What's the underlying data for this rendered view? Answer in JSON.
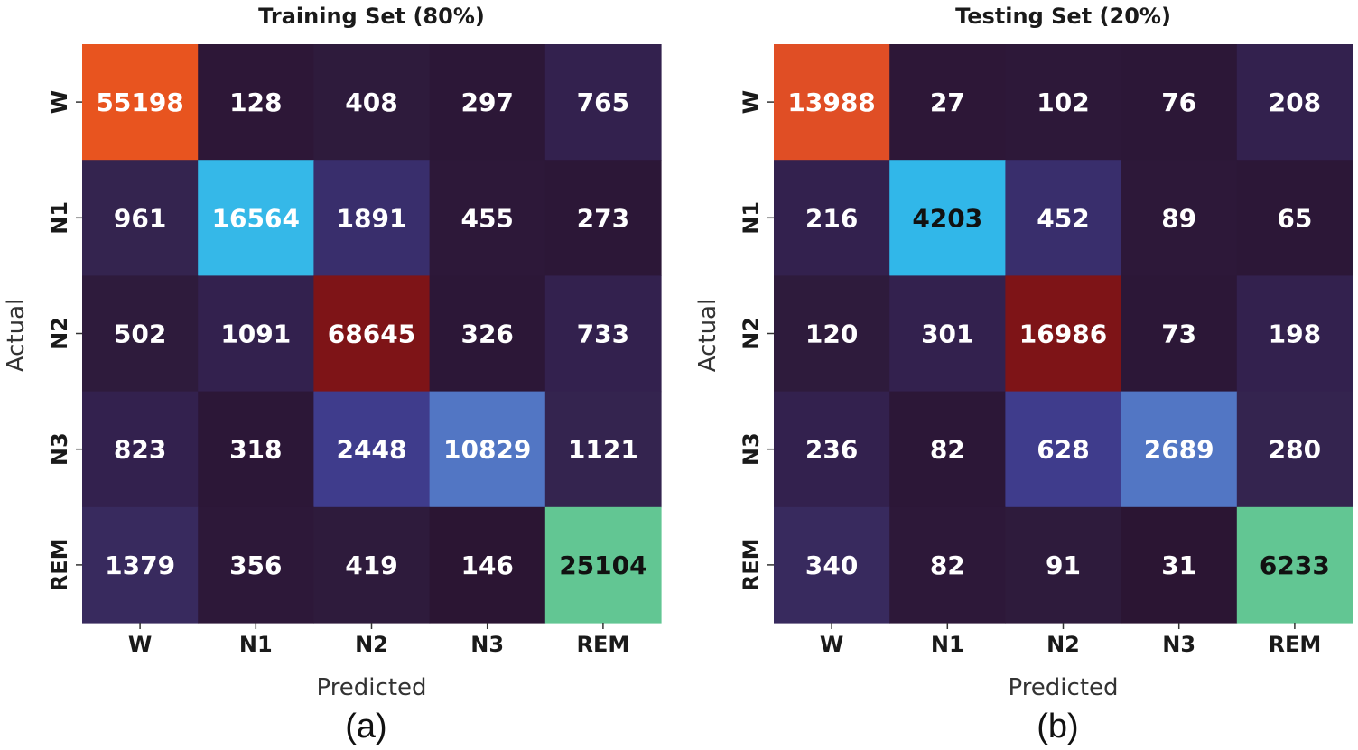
{
  "chart_data": [
    {
      "type": "heatmap",
      "title": "Training Set (80%)",
      "xlabel": "Predicted",
      "ylabel": "Actual",
      "caption": "(a)",
      "x_categories": [
        "W",
        "N1",
        "N2",
        "N3",
        "REM"
      ],
      "y_categories": [
        "W",
        "N1",
        "N2",
        "N3",
        "REM"
      ],
      "values": [
        [
          55198,
          128,
          408,
          297,
          765
        ],
        [
          961,
          16564,
          1891,
          455,
          273
        ],
        [
          502,
          1091,
          68645,
          326,
          733
        ],
        [
          823,
          318,
          2448,
          10829,
          1121
        ],
        [
          1379,
          356,
          419,
          146,
          25104
        ]
      ],
      "cell_colors": [
        [
          "#e8541f",
          "#2d1737",
          "#2e1b3c",
          "#2c1737",
          "#33214e"
        ],
        [
          "#34244f",
          "#35b8e8",
          "#392e6c",
          "#2d1839",
          "#2c1737"
        ],
        [
          "#2e1b3c",
          "#33214e",
          "#7e1417",
          "#2c1737",
          "#33214e"
        ],
        [
          "#33214e",
          "#2c1737",
          "#3f3c8c",
          "#5276c4",
          "#34244f"
        ],
        [
          "#382a5e",
          "#2d1839",
          "#2e1b3c",
          "#2b1533",
          "#62c693"
        ]
      ],
      "text_colors": [
        [
          "#ffffff",
          "#ffffff",
          "#ffffff",
          "#ffffff",
          "#ffffff"
        ],
        [
          "#ffffff",
          "#ffffff",
          "#ffffff",
          "#ffffff",
          "#ffffff"
        ],
        [
          "#ffffff",
          "#ffffff",
          "#ffffff",
          "#ffffff",
          "#ffffff"
        ],
        [
          "#ffffff",
          "#ffffff",
          "#ffffff",
          "#ffffff",
          "#ffffff"
        ],
        [
          "#ffffff",
          "#ffffff",
          "#ffffff",
          "#ffffff",
          "#111111"
        ]
      ],
      "colorbar": false,
      "grid": false
    },
    {
      "type": "heatmap",
      "title": "Testing Set (20%)",
      "xlabel": "Predicted",
      "ylabel": "Actual",
      "caption": "(b)",
      "x_categories": [
        "W",
        "N1",
        "N2",
        "N3",
        "REM"
      ],
      "y_categories": [
        "W",
        "N1",
        "N2",
        "N3",
        "REM"
      ],
      "values": [
        [
          13988,
          27,
          102,
          76,
          208
        ],
        [
          216,
          4203,
          452,
          89,
          65
        ],
        [
          120,
          301,
          16986,
          73,
          198
        ],
        [
          236,
          82,
          628,
          2689,
          280
        ],
        [
          340,
          82,
          91,
          31,
          6233
        ]
      ],
      "cell_colors": [
        [
          "#e04e25",
          "#2d1737",
          "#2d1839",
          "#2c1737",
          "#33214e"
        ],
        [
          "#33214e",
          "#31b7e9",
          "#392e6c",
          "#2d1839",
          "#2c1737"
        ],
        [
          "#2e1b3c",
          "#33214e",
          "#7e1417",
          "#2c1737",
          "#33214e"
        ],
        [
          "#33214e",
          "#2c1737",
          "#3f3c8c",
          "#5276c4",
          "#34244f"
        ],
        [
          "#382a5e",
          "#2d1839",
          "#2e1b3c",
          "#2b1533",
          "#62c693"
        ]
      ],
      "text_colors": [
        [
          "#ffffff",
          "#ffffff",
          "#ffffff",
          "#ffffff",
          "#ffffff"
        ],
        [
          "#ffffff",
          "#111111",
          "#ffffff",
          "#ffffff",
          "#ffffff"
        ],
        [
          "#ffffff",
          "#ffffff",
          "#ffffff",
          "#ffffff",
          "#ffffff"
        ],
        [
          "#ffffff",
          "#ffffff",
          "#ffffff",
          "#ffffff",
          "#ffffff"
        ],
        [
          "#ffffff",
          "#ffffff",
          "#ffffff",
          "#ffffff",
          "#111111"
        ]
      ],
      "colorbar": false,
      "grid": false
    }
  ]
}
